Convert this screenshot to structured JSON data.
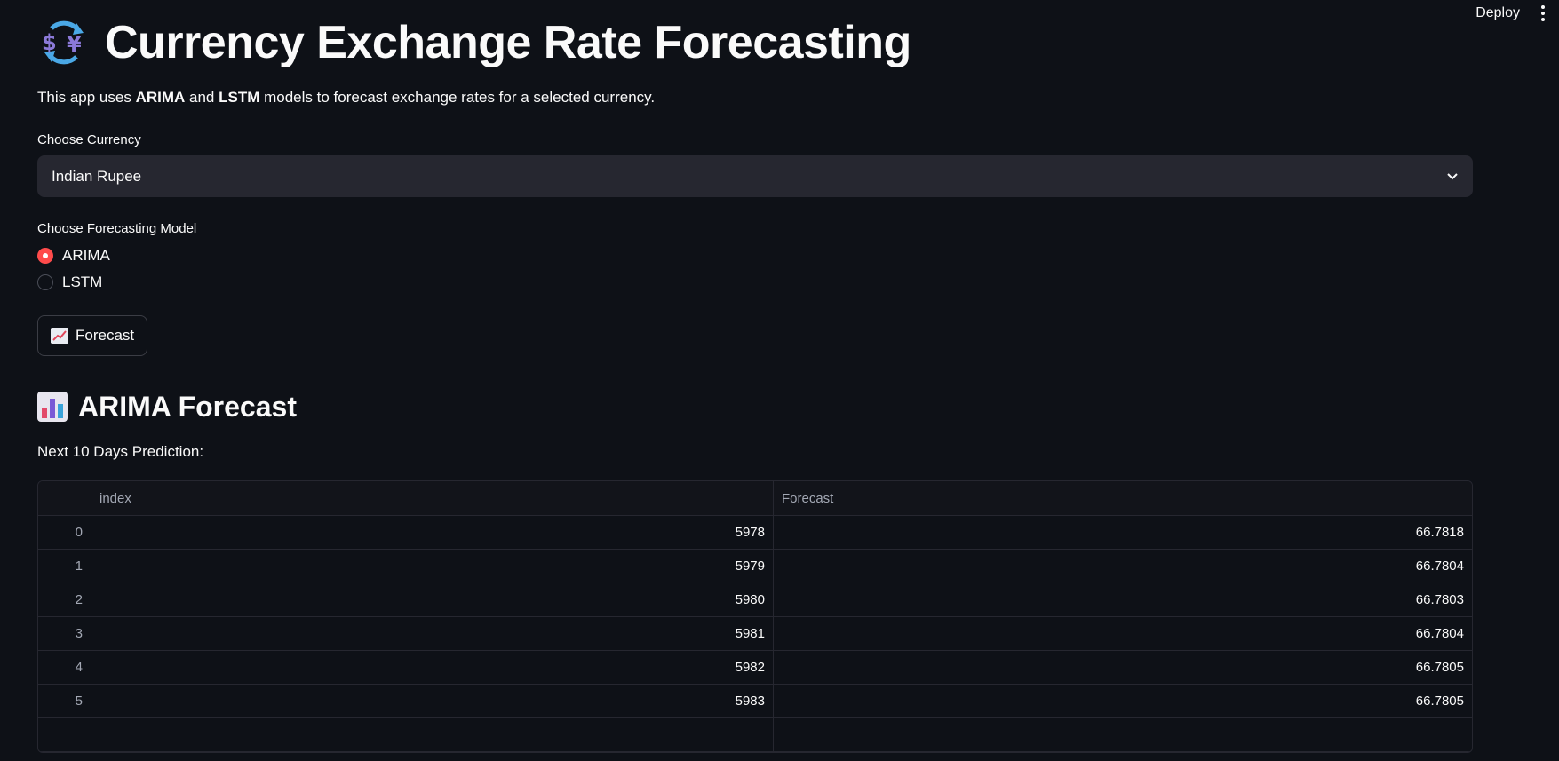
{
  "toolbar": {
    "deploy_label": "Deploy"
  },
  "header": {
    "title": "Currency Exchange Rate Forecasting",
    "icon": "currency-exchange-icon"
  },
  "intro": {
    "prefix": "This app uses ",
    "model1": "ARIMA",
    "connector": " and ",
    "model2": "LSTM",
    "suffix": " models to forecast exchange rates for a selected currency."
  },
  "currency": {
    "label": "Choose Currency",
    "selected": "Indian Rupee"
  },
  "model": {
    "label": "Choose Forecasting Model",
    "options": [
      {
        "label": "ARIMA",
        "selected": true
      },
      {
        "label": "LSTM",
        "selected": false
      }
    ]
  },
  "forecast_button": {
    "label": "Forecast",
    "icon": "chart-increasing-icon"
  },
  "result": {
    "heading": "ARIMA Forecast",
    "heading_icon": "bar-chart-icon",
    "subheading": "Next 10 Days Prediction:",
    "columns": [
      "",
      "index",
      "Forecast"
    ],
    "rows": [
      [
        "0",
        "5978",
        "66.7818"
      ],
      [
        "1",
        "5979",
        "66.7804"
      ],
      [
        "2",
        "5980",
        "66.7803"
      ],
      [
        "3",
        "5981",
        "66.7804"
      ],
      [
        "4",
        "5982",
        "66.7805"
      ],
      [
        "5",
        "5983",
        "66.7805"
      ]
    ]
  },
  "colors": {
    "accent": "#ff4b4b",
    "background": "#0e1117",
    "input_bg": "#262730"
  }
}
